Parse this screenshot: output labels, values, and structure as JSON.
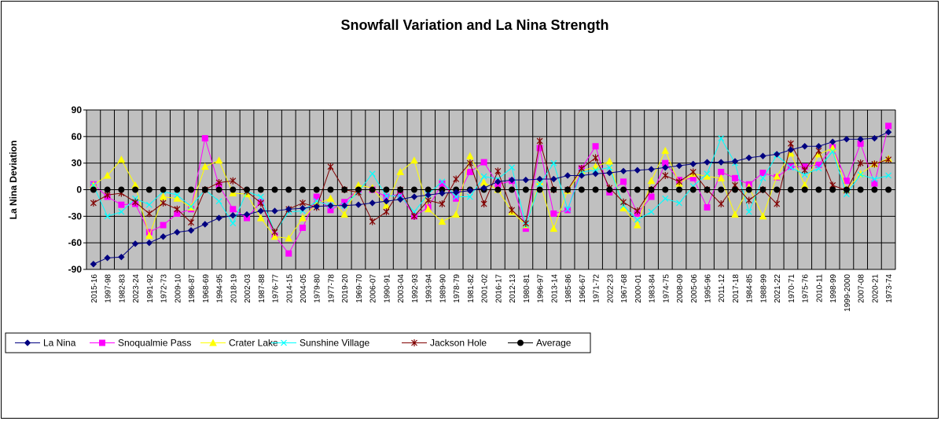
{
  "chart_data": {
    "type": "line",
    "title": "Snowfall  Variation  and La Nina  Strength",
    "ylabel": "La Nina Deviation",
    "xlabel": "",
    "ylim": [
      -90,
      90
    ],
    "yticks": [
      90,
      60,
      30,
      0,
      -30,
      -60,
      -90
    ],
    "grid": true,
    "legend_position": "bottom",
    "plot_background": "#c0c0c0",
    "categories": [
      "2015-16",
      "1997-98",
      "1982-83",
      "2023-24",
      "1991-92",
      "1972-73",
      "2009-10",
      "1986-87",
      "1968-69",
      "1994-95",
      "2018-19",
      "2002-03",
      "1987-88",
      "1976-77",
      "2014-15",
      "2004-05",
      "1979-80",
      "1977-78",
      "2019-20",
      "1969-70",
      "2006-07",
      "1990-91",
      "2003-04",
      "1992-93",
      "1993-94",
      "1989-90",
      "1978-79",
      "1981-82",
      "2001-02",
      "2016-17",
      "2012-13",
      "1980-81",
      "1996-97",
      "2013-14",
      "1985-86",
      "1966-67",
      "1971-72",
      "2022-23",
      "1967-68",
      "2000-01",
      "1983-84",
      "1974-75",
      "2008-09",
      "2005-06",
      "1995-96",
      "2011-12",
      "2017-18",
      "1984-85",
      "1988-99",
      "2021-22",
      "1970-71",
      "1975-76",
      "2010-11",
      "1998-99",
      "1999-2000",
      "2007-08",
      "2020-21",
      "1973-74"
    ],
    "series": [
      {
        "name": "La Nina",
        "color": "#000080",
        "marker": "diamond",
        "values": [
          -84,
          -77,
          -76,
          -61,
          -60,
          -53,
          -48,
          -46,
          -39,
          -32,
          -29,
          -28,
          -24,
          -24,
          -22,
          -21,
          -19,
          -18,
          -18,
          -17,
          -15,
          -13,
          -11,
          -8,
          -6,
          -4,
          -3,
          -1,
          2,
          9,
          11,
          11,
          12,
          12,
          16,
          16,
          18,
          19,
          21,
          22,
          23,
          25,
          27,
          29,
          31,
          31,
          32,
          36,
          38,
          40,
          45,
          49,
          49,
          54,
          57,
          57,
          58,
          65
        ]
      },
      {
        "name": "Snoqualmie Pass",
        "color": "#ff00ff",
        "marker": "square",
        "values": [
          6,
          -8,
          -17,
          -16,
          -48,
          -40,
          -27,
          -22,
          58,
          5,
          -22,
          -32,
          -14,
          -52,
          -72,
          -43,
          -8,
          -23,
          -14,
          0,
          0,
          -8,
          -5,
          -30,
          -20,
          7,
          -10,
          20,
          31,
          6,
          10,
          -44,
          47,
          -27,
          -23,
          24,
          49,
          -3,
          9,
          -27,
          -8,
          30,
          11,
          13,
          -20,
          20,
          13,
          6,
          19,
          14,
          26,
          26,
          28,
          48,
          10,
          52,
          7,
          72
        ]
      },
      {
        "name": "Crater Lake",
        "color": "#ffff00",
        "marker": "triangle",
        "values": [
          5,
          16,
          34,
          5,
          -52,
          -8,
          -10,
          -20,
          26,
          33,
          -4,
          -5,
          -32,
          -53,
          -55,
          -32,
          -16,
          -10,
          -28,
          5,
          2,
          -18,
          20,
          33,
          -22,
          -36,
          -28,
          38,
          8,
          0,
          -25,
          -40,
          9,
          -44,
          -1,
          21,
          26,
          32,
          -21,
          -40,
          10,
          44,
          7,
          18,
          15,
          13,
          -28,
          3,
          -30,
          15,
          41,
          5,
          40,
          47,
          0,
          18,
          29,
          35
        ]
      },
      {
        "name": "Sunshine Village",
        "color": "#00ffff",
        "marker": "x",
        "values": [
          5,
          -30,
          -25,
          -10,
          -17,
          -2,
          -6,
          -19,
          0,
          -13,
          -38,
          -2,
          -8,
          -48,
          -25,
          -24,
          -13,
          -18,
          -18,
          -2,
          18,
          -7,
          -7,
          -25,
          -5,
          9,
          -8,
          -8,
          15,
          12,
          25,
          -40,
          6,
          30,
          -22,
          20,
          22,
          25,
          -18,
          -34,
          -25,
          -10,
          -15,
          4,
          18,
          58,
          30,
          -25,
          13,
          39,
          25,
          17,
          24,
          43,
          -5,
          17,
          12,
          16
        ]
      },
      {
        "name": "Jackson Hole",
        "color": "#800000",
        "marker": "star",
        "values": [
          -15,
          -6,
          -4,
          -14,
          -27,
          -15,
          -22,
          -37,
          0,
          8,
          10,
          -2,
          -15,
          -48,
          -22,
          -15,
          -20,
          26,
          0,
          -3,
          -36,
          -25,
          0,
          -30,
          -12,
          -16,
          12,
          30,
          -16,
          21,
          -23,
          -38,
          55,
          0,
          0,
          24,
          36,
          2,
          -14,
          -24,
          0,
          16,
          9,
          20,
          0,
          -16,
          5,
          -12,
          0,
          -16,
          52,
          22,
          44,
          5,
          -1,
          30,
          29,
          34
        ]
      },
      {
        "name": "Average",
        "color": "#000000",
        "marker": "circle",
        "values": [
          0,
          0,
          0,
          0,
          0,
          0,
          0,
          0,
          0,
          0,
          0,
          0,
          0,
          0,
          0,
          0,
          0,
          0,
          0,
          0,
          0,
          0,
          0,
          0,
          0,
          0,
          0,
          0,
          0,
          0,
          0,
          0,
          0,
          0,
          0,
          0,
          0,
          0,
          0,
          0,
          0,
          0,
          0,
          0,
          0,
          0,
          0,
          0,
          0,
          0,
          0,
          0,
          0,
          0,
          0,
          0,
          0,
          0
        ]
      }
    ]
  }
}
